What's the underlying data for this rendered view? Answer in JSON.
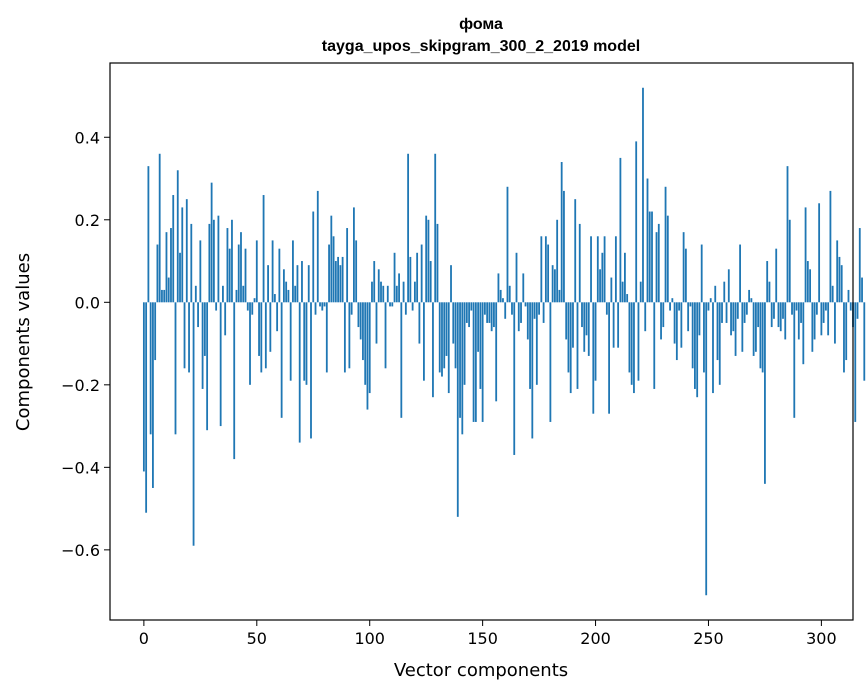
{
  "chart_data": {
    "type": "bar",
    "title_line1": "фома",
    "title_line2": "tayga_upos_skipgram_300_2_2019 model",
    "xlabel": "Vector components",
    "ylabel": "Components values",
    "xlim": [
      -15,
      314
    ],
    "ylim": [
      -0.77,
      0.58
    ],
    "x_ticks": [
      0,
      50,
      100,
      150,
      200,
      250,
      300
    ],
    "x_tick_labels": [
      "0",
      "50",
      "100",
      "150",
      "200",
      "250",
      "300"
    ],
    "y_ticks": [
      -0.6,
      -0.4,
      -0.2,
      0.0,
      0.2,
      0.4
    ],
    "y_tick_labels": [
      "−0.6",
      "−0.4",
      "−0.2",
      "0.0",
      "0.2",
      "0.4"
    ],
    "bar_color": "#1f77b4",
    "grid": false,
    "values": [
      -0.41,
      -0.51,
      0.33,
      -0.32,
      -0.45,
      -0.14,
      0.14,
      0.36,
      0.03,
      0.03,
      0.17,
      0.06,
      0.18,
      0.26,
      -0.32,
      0.32,
      0.12,
      0.23,
      -0.16,
      0.25,
      -0.17,
      0.19,
      -0.59,
      0.04,
      -0.06,
      0.15,
      -0.21,
      -0.13,
      -0.31,
      0.19,
      0.29,
      0.2,
      -0.02,
      0.21,
      -0.3,
      0.04,
      -0.08,
      0.18,
      0.13,
      0.2,
      -0.38,
      0.03,
      0.14,
      0.17,
      0.04,
      0.13,
      -0.02,
      -0.2,
      -0.03,
      0.01,
      0.15,
      -0.13,
      -0.17,
      0.26,
      -0.16,
      0.09,
      -0.12,
      0.15,
      0.02,
      -0.07,
      0.13,
      -0.28,
      0.08,
      0.05,
      0.03,
      -0.19,
      0.15,
      0.04,
      0.09,
      -0.34,
      0.1,
      -0.19,
      -0.2,
      0.09,
      -0.33,
      0.22,
      -0.03,
      0.27,
      -0.01,
      -0.02,
      -0.01,
      -0.17,
      0.14,
      0.21,
      0.16,
      0.1,
      0.11,
      0.09,
      0.11,
      -0.17,
      0.18,
      -0.16,
      -0.03,
      0.23,
      0.15,
      -0.06,
      -0.09,
      -0.14,
      -0.2,
      -0.26,
      -0.22,
      0.05,
      0.1,
      -0.1,
      0.08,
      0.05,
      0.04,
      -0.16,
      0.04,
      -0.01,
      -0.01,
      0.12,
      0.04,
      0.07,
      -0.28,
      0.05,
      -0.03,
      0.36,
      0.11,
      -0.02,
      0.05,
      0.12,
      -0.1,
      0.14,
      -0.19,
      0.21,
      0.2,
      0.1,
      -0.23,
      0.36,
      0.19,
      -0.17,
      -0.18,
      -0.16,
      -0.13,
      -0.22,
      0.09,
      -0.1,
      -0.16,
      -0.52,
      -0.28,
      -0.32,
      -0.2,
      -0.05,
      -0.06,
      -0.02,
      -0.29,
      -0.29,
      -0.12,
      -0.21,
      -0.29,
      -0.03,
      -0.05,
      -0.05,
      -0.07,
      -0.06,
      -0.24,
      0.07,
      0.03,
      0.01,
      -0.04,
      0.28,
      0.04,
      -0.03,
      -0.37,
      0.12,
      -0.07,
      -0.05,
      0.07,
      -0.01,
      -0.09,
      -0.21,
      -0.33,
      -0.04,
      -0.2,
      -0.03,
      0.16,
      -0.05,
      0.16,
      0.14,
      -0.29,
      0.09,
      0.08,
      0.2,
      0.03,
      0.34,
      0.27,
      -0.09,
      -0.17,
      -0.22,
      -0.11,
      0.25,
      -0.21,
      0.19,
      -0.06,
      -0.12,
      -0.08,
      -0.13,
      0.16,
      -0.27,
      -0.19,
      0.16,
      0.08,
      0.12,
      0.16,
      -0.03,
      -0.27,
      0.06,
      -0.11,
      0.16,
      -0.11,
      0.35,
      0.05,
      0.12,
      0.02,
      -0.17,
      -0.2,
      -0.22,
      0.39,
      -0.19,
      0.05,
      0.52,
      -0.07,
      0.3,
      0.22,
      0.22,
      -0.21,
      0.17,
      0.19,
      -0.09,
      -0.06,
      0.28,
      0.21,
      -0.02,
      0.01,
      -0.1,
      -0.14,
      -0.02,
      -0.11,
      0.17,
      0.13,
      -0.07,
      -0.01,
      -0.16,
      -0.21,
      -0.23,
      -0.08,
      0.14,
      -0.17,
      -0.71,
      -0.02,
      0.01,
      -0.22,
      0.04,
      -0.14,
      -0.2,
      -0.05,
      0.05,
      -0.05,
      0.08,
      -0.08,
      -0.07,
      -0.13,
      -0.04,
      0.14,
      -0.12,
      -0.05,
      -0.03,
      0.03,
      0.01,
      -0.13,
      -0.12,
      -0.06,
      -0.16,
      -0.17,
      -0.44,
      0.1,
      0.05,
      -0.06,
      -0.04,
      0.13,
      -0.06,
      -0.07,
      -0.04,
      -0.09,
      0.33,
      0.2,
      -0.03,
      -0.28,
      -0.02,
      -0.09,
      -0.05,
      -0.15,
      0.23,
      0.1,
      0.08,
      -0.12,
      -0.09,
      -0.03,
      0.24,
      -0.08,
      -0.05,
      -0.02,
      -0.08,
      0.27,
      0.04,
      -0.1,
      0.15,
      0.11,
      0.09,
      -0.17,
      -0.14,
      0.03,
      -0.02,
      -0.06,
      -0.29,
      -0.04,
      0.18,
      0.06,
      -0.19
    ]
  }
}
